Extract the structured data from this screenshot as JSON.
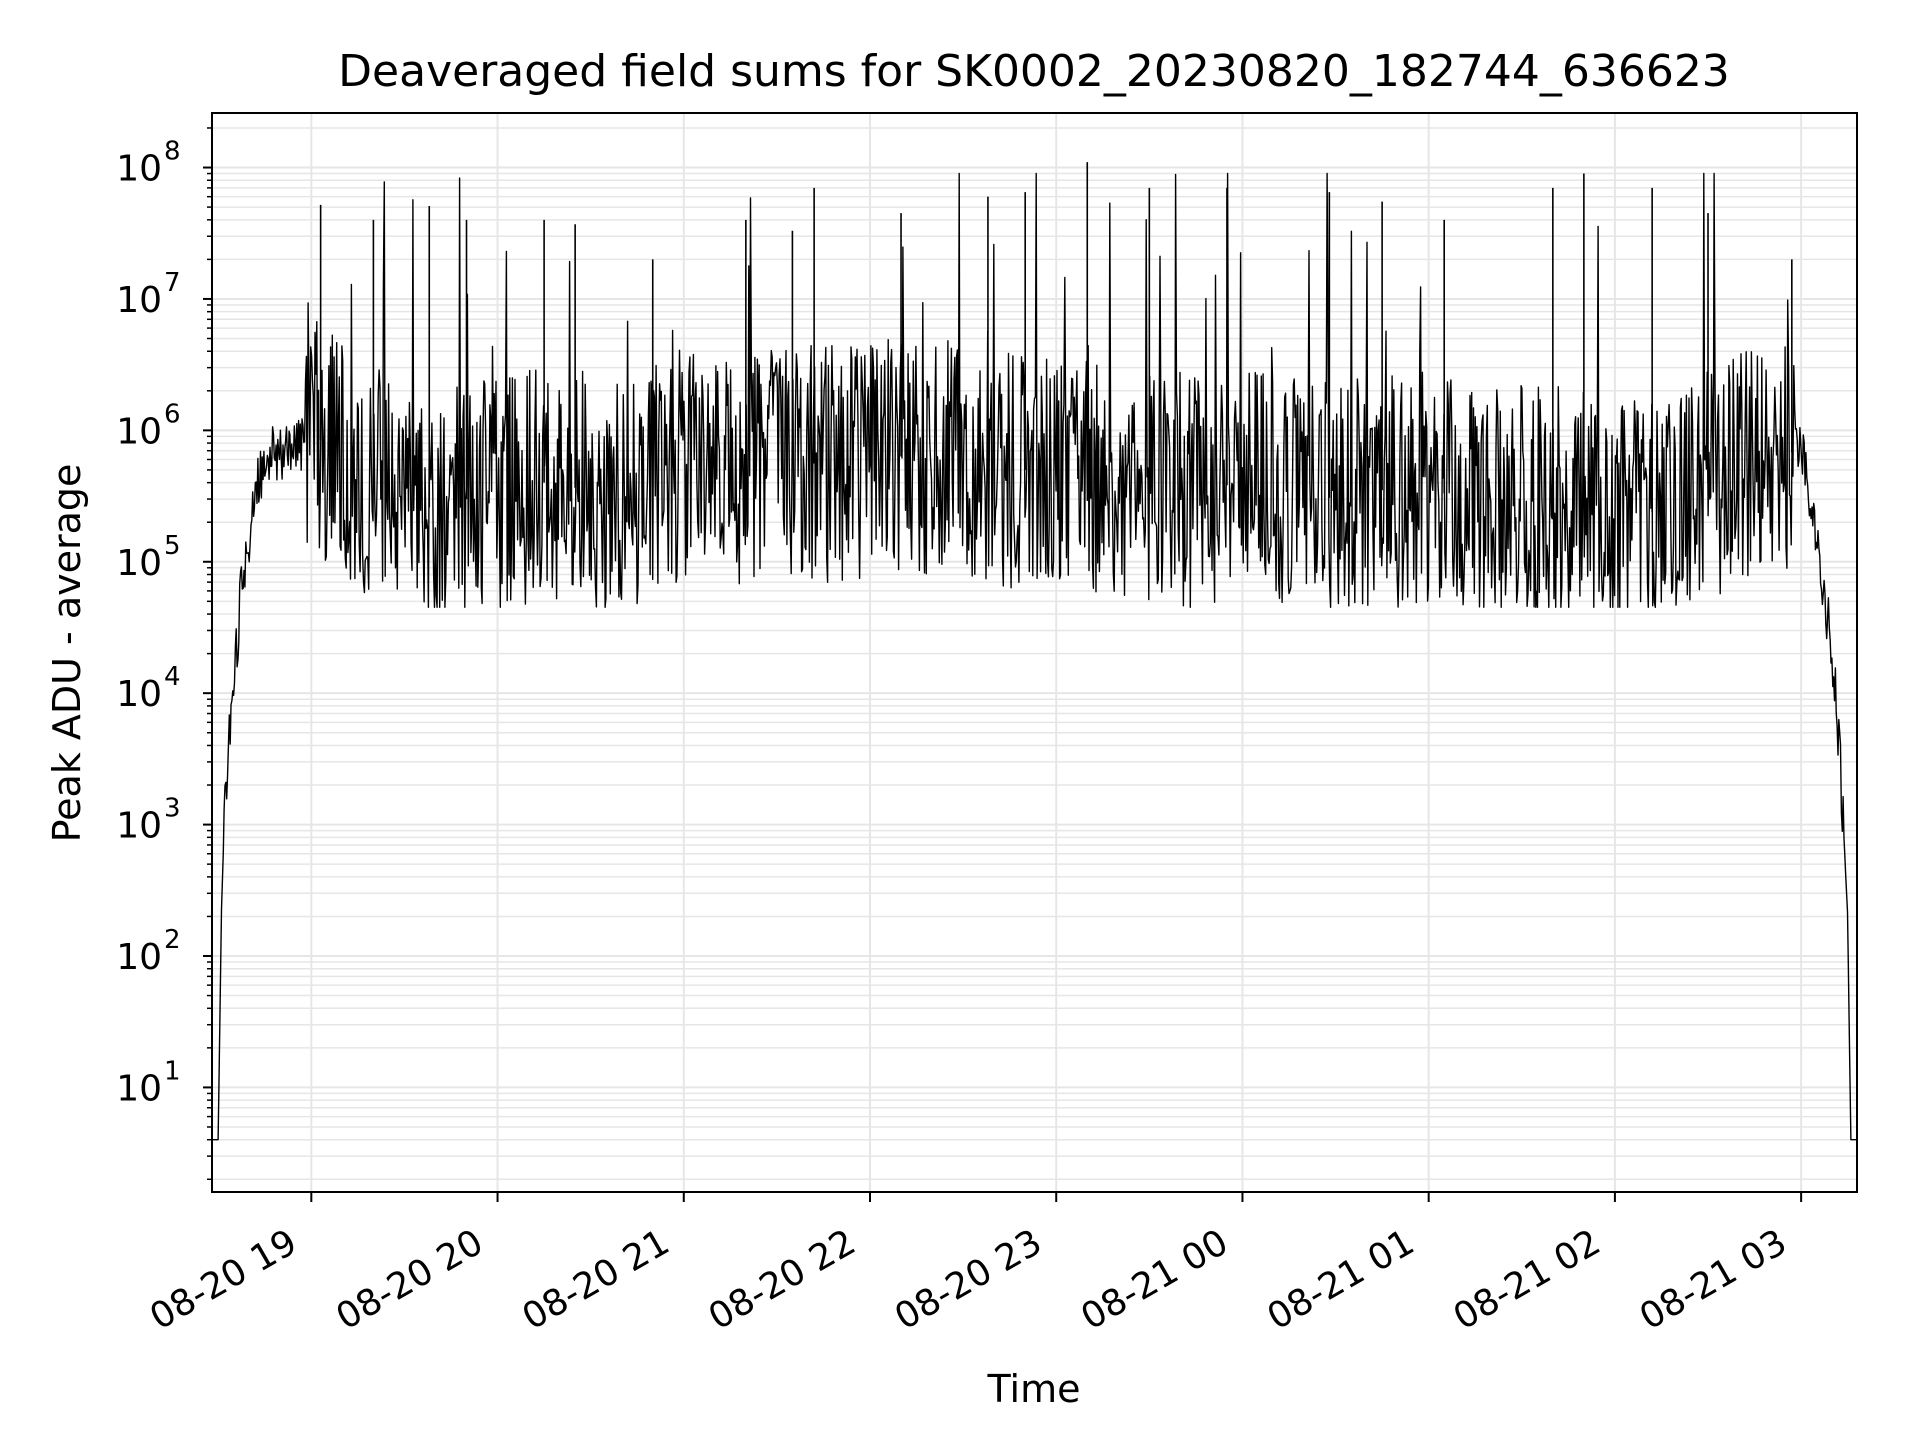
{
  "chart_data": {
    "type": "line",
    "title": "Deaveraged field sums for SK0002_20230820_182744_636623",
    "xlabel": "Time",
    "ylabel": "Peak ADU - average",
    "yscale": "log",
    "ylim": [
      1.6,
      260000000
    ],
    "xlim": [
      "2023-08-20 18:28",
      "2023-08-21 03:18"
    ],
    "grid": true,
    "line_color": "#000000",
    "grid_color": "#e6e6e6",
    "x_ticks": [
      {
        "value": "2023-08-20 19:00",
        "label": "08-20 19"
      },
      {
        "value": "2023-08-20 20:00",
        "label": "08-20 20"
      },
      {
        "value": "2023-08-20 21:00",
        "label": "08-20 21"
      },
      {
        "value": "2023-08-20 22:00",
        "label": "08-20 22"
      },
      {
        "value": "2023-08-20 23:00",
        "label": "08-20 23"
      },
      {
        "value": "2023-08-21 00:00",
        "label": "08-21 00"
      },
      {
        "value": "2023-08-21 01:00",
        "label": "08-21 01"
      },
      {
        "value": "2023-08-21 02:00",
        "label": "08-21 02"
      },
      {
        "value": "2023-08-21 03:00",
        "label": "08-21 03"
      }
    ],
    "y_ticks": [
      {
        "base": "10",
        "exp": "1"
      },
      {
        "base": "10",
        "exp": "2"
      },
      {
        "base": "10",
        "exp": "3"
      },
      {
        "base": "10",
        "exp": "4"
      },
      {
        "base": "10",
        "exp": "5"
      },
      {
        "base": "10",
        "exp": "6"
      },
      {
        "base": "10",
        "exp": "7"
      },
      {
        "base": "10",
        "exp": "8"
      }
    ],
    "series": [
      {
        "x": [
          "2023-08-20 18:28",
          "2023-08-20 18:29",
          "2023-08-20 18:30",
          "2023-08-20 18:31",
          "2023-08-20 18:32",
          "2023-08-20 18:33",
          "2023-08-20 18:35",
          "2023-08-20 18:37",
          "2023-08-20 18:40",
          "2023-08-20 18:43",
          "2023-08-20 18:46",
          "2023-08-20 18:50",
          "2023-08-20 18:55",
          "2023-08-20 19:00",
          "2023-08-20 19:05",
          "2023-08-20 19:10",
          "2023-08-20 19:20",
          "2023-08-20 19:30",
          "2023-08-20 19:40",
          "2023-08-20 19:50",
          "2023-08-20 20:00",
          "2023-08-20 20:15",
          "2023-08-20 20:30",
          "2023-08-20 20:45",
          "2023-08-20 21:00",
          "2023-08-20 21:15",
          "2023-08-20 21:30",
          "2023-08-20 21:45",
          "2023-08-20 22:00",
          "2023-08-20 22:15",
          "2023-08-20 22:30",
          "2023-08-20 22:45",
          "2023-08-20 23:00",
          "2023-08-20 23:15",
          "2023-08-20 23:30",
          "2023-08-20 23:45",
          "2023-08-21 00:00",
          "2023-08-21 00:15",
          "2023-08-21 00:30",
          "2023-08-21 00:45",
          "2023-08-21 01:00",
          "2023-08-21 01:15",
          "2023-08-21 01:30",
          "2023-08-21 01:45",
          "2023-08-21 02:00",
          "2023-08-21 02:15",
          "2023-08-21 02:30",
          "2023-08-21 02:45",
          "2023-08-21 03:00",
          "2023-08-21 03:03",
          "2023-08-21 03:06",
          "2023-08-21 03:09",
          "2023-08-21 03:11",
          "2023-08-21 03:13",
          "2023-08-21 03:15",
          "2023-08-21 03:16",
          "2023-08-21 03:17",
          "2023-08-21 03:18"
        ],
        "values": [
          4,
          4,
          4,
          200,
          1200,
          3000,
          10000,
          50000,
          150000,
          400000,
          700000,
          700000,
          800000,
          900000,
          800000,
          600000,
          400000,
          300000,
          250000,
          300000,
          300000,
          400000,
          350000,
          300000,
          600000,
          500000,
          600000,
          550000,
          600000,
          650000,
          600000,
          500000,
          500000,
          400000,
          350000,
          350000,
          400000,
          350000,
          300000,
          350000,
          350000,
          300000,
          300000,
          300000,
          200000,
          250000,
          400000,
          600000,
          700000,
          300000,
          100000,
          30000,
          10000,
          2000,
          200,
          4,
          4,
          4
        ]
      }
    ],
    "spikes": [
      {
        "x": "2023-08-20 19:03",
        "value": 52000000
      },
      {
        "x": "2023-08-20 19:20",
        "value": 40000000
      },
      {
        "x": "2023-08-20 19:38",
        "value": 51000000
      },
      {
        "x": "2023-08-20 19:50",
        "value": 40000000
      },
      {
        "x": "2023-08-20 20:15",
        "value": 40000000
      },
      {
        "x": "2023-08-20 20:25",
        "value": 37000000
      },
      {
        "x": "2023-08-20 20:50",
        "value": 20000000
      },
      {
        "x": "2023-08-20 21:20",
        "value": 40000000
      },
      {
        "x": "2023-08-20 21:35",
        "value": 33000000
      },
      {
        "x": "2023-08-20 21:42",
        "value": 70000000
      },
      {
        "x": "2023-08-20 22:10",
        "value": 45000000
      },
      {
        "x": "2023-08-20 22:38",
        "value": 60000000
      },
      {
        "x": "2023-08-20 22:50",
        "value": 65000000
      },
      {
        "x": "2023-08-20 23:10",
        "value": 110000000
      },
      {
        "x": "2023-08-20 23:30",
        "value": 70000000
      },
      {
        "x": "2023-08-20 23:55",
        "value": 70000000
      },
      {
        "x": "2023-08-21 00:28",
        "value": 65000000
      },
      {
        "x": "2023-08-21 00:45",
        "value": 55000000
      },
      {
        "x": "2023-08-21 01:05",
        "value": 40000000
      },
      {
        "x": "2023-08-21 01:40",
        "value": 70000000
      },
      {
        "x": "2023-08-21 01:50",
        "value": 90000000
      },
      {
        "x": "2023-08-21 02:12",
        "value": 70000000
      },
      {
        "x": "2023-08-21 02:30",
        "value": 45000000
      },
      {
        "x": "2023-08-21 02:57",
        "value": 20000000
      }
    ]
  }
}
